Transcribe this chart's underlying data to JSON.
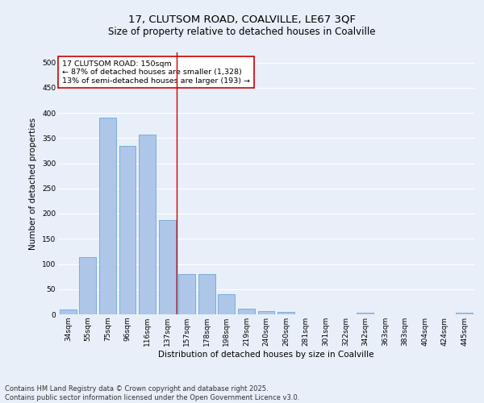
{
  "title_line1": "17, CLUTSOM ROAD, COALVILLE, LE67 3QF",
  "title_line2": "Size of property relative to detached houses in Coalville",
  "xlabel": "Distribution of detached houses by size in Coalville",
  "ylabel": "Number of detached properties",
  "footer_line1": "Contains HM Land Registry data © Crown copyright and database right 2025.",
  "footer_line2": "Contains public sector information licensed under the Open Government Licence v3.0.",
  "annotation_line1": "17 CLUTSOM ROAD: 150sqm",
  "annotation_line2": "← 87% of detached houses are smaller (1,328)",
  "annotation_line3": "13% of semi-detached houses are larger (193) →",
  "bar_labels": [
    "34sqm",
    "55sqm",
    "75sqm",
    "96sqm",
    "116sqm",
    "137sqm",
    "157sqm",
    "178sqm",
    "198sqm",
    "219sqm",
    "240sqm",
    "260sqm",
    "281sqm",
    "301sqm",
    "322sqm",
    "342sqm",
    "363sqm",
    "383sqm",
    "404sqm",
    "424sqm",
    "445sqm"
  ],
  "bar_values": [
    10,
    113,
    390,
    335,
    357,
    187,
    80,
    80,
    40,
    11,
    7,
    5,
    0,
    0,
    0,
    4,
    0,
    0,
    0,
    0,
    3
  ],
  "bar_color": "#aec6e8",
  "bar_edge_color": "#5b9bd5",
  "red_line_index": 5,
  "ylim": [
    0,
    520
  ],
  "yticks": [
    0,
    50,
    100,
    150,
    200,
    250,
    300,
    350,
    400,
    450,
    500
  ],
  "background_color": "#e8eff8",
  "grid_color": "#ffffff",
  "annotation_box_facecolor": "#ffffff",
  "annotation_box_edge": "#cc0000",
  "red_line_color": "#cc0000",
  "title_fontsize": 9.5,
  "subtitle_fontsize": 8.5,
  "axis_label_fontsize": 7.5,
  "tick_fontsize": 6.5,
  "annotation_fontsize": 6.8,
  "footer_fontsize": 6
}
